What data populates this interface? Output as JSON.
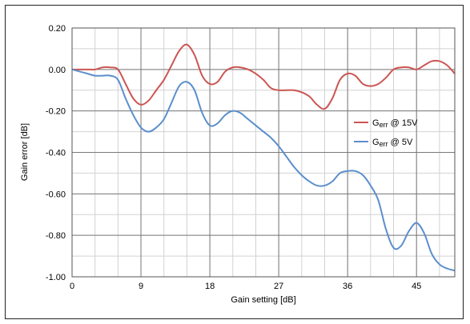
{
  "chart_data": {
    "type": "line",
    "xlabel": "Gain setting [dB]",
    "ylabel": "Gain error [dB]",
    "xlim": [
      0,
      50
    ],
    "ylim": [
      -1.0,
      0.2
    ],
    "x_ticks": [
      0,
      9,
      18,
      27,
      36,
      45
    ],
    "x_tick_labels": [
      "0",
      "9",
      "18",
      "27",
      "36",
      "45"
    ],
    "y_ticks": [
      0.2,
      0.0,
      -0.2,
      -0.4,
      -0.6,
      -0.8,
      -1.0
    ],
    "y_tick_labels": [
      "0.20",
      "0.00",
      "-0.20",
      "-0.40",
      "-0.60",
      "-0.80",
      "-1.00"
    ],
    "grid": true,
    "grid_minor_x_step": 3,
    "grid_minor_y_step": 0.1,
    "legend_position": "right",
    "series": [
      {
        "label_main": "G",
        "label_sub": "err",
        "label_rest": " @ 15V",
        "color": "#cc5553",
        "x": [
          0,
          1,
          2,
          3,
          4,
          5,
          6,
          7,
          8,
          9,
          10,
          11,
          12,
          13,
          14,
          15,
          16,
          17,
          18,
          19,
          20,
          21,
          22,
          23,
          24,
          25,
          26,
          27,
          28,
          29,
          30,
          31,
          32,
          33,
          34,
          35,
          36,
          37,
          38,
          39,
          40,
          41,
          42,
          43,
          44,
          45,
          46,
          47,
          48,
          49,
          50
        ],
        "y": [
          0.0,
          0.0,
          0.0,
          0.0,
          0.01,
          0.01,
          0.0,
          -0.07,
          -0.14,
          -0.17,
          -0.15,
          -0.1,
          -0.05,
          0.02,
          0.09,
          0.12,
          0.07,
          -0.03,
          -0.07,
          -0.06,
          -0.01,
          0.01,
          0.01,
          0.0,
          -0.02,
          -0.05,
          -0.09,
          -0.1,
          -0.1,
          -0.1,
          -0.11,
          -0.13,
          -0.17,
          -0.19,
          -0.14,
          -0.05,
          -0.02,
          -0.03,
          -0.07,
          -0.08,
          -0.07,
          -0.04,
          0.0,
          0.01,
          0.01,
          0.0,
          0.02,
          0.04,
          0.04,
          0.02,
          -0.02
        ]
      },
      {
        "label_main": "G",
        "label_sub": "err",
        "label_rest": " @ 5V",
        "color": "#5b8fcc",
        "x": [
          0,
          1,
          2,
          3,
          4,
          5,
          6,
          7,
          8,
          9,
          10,
          11,
          12,
          13,
          14,
          15,
          16,
          17,
          18,
          19,
          20,
          21,
          22,
          23,
          24,
          25,
          26,
          27,
          28,
          29,
          30,
          31,
          32,
          33,
          34,
          35,
          36,
          37,
          38,
          39,
          40,
          41,
          42,
          43,
          44,
          45,
          46,
          47,
          48,
          49,
          50
        ],
        "y": [
          0.0,
          -0.01,
          -0.02,
          -0.03,
          -0.03,
          -0.03,
          -0.05,
          -0.14,
          -0.22,
          -0.28,
          -0.3,
          -0.28,
          -0.24,
          -0.16,
          -0.08,
          -0.06,
          -0.1,
          -0.21,
          -0.27,
          -0.26,
          -0.22,
          -0.2,
          -0.21,
          -0.24,
          -0.27,
          -0.3,
          -0.33,
          -0.37,
          -0.42,
          -0.47,
          -0.51,
          -0.54,
          -0.56,
          -0.56,
          -0.54,
          -0.5,
          -0.49,
          -0.49,
          -0.51,
          -0.56,
          -0.63,
          -0.77,
          -0.86,
          -0.85,
          -0.78,
          -0.74,
          -0.79,
          -0.89,
          -0.94,
          -0.96,
          -0.97
        ]
      }
    ]
  }
}
